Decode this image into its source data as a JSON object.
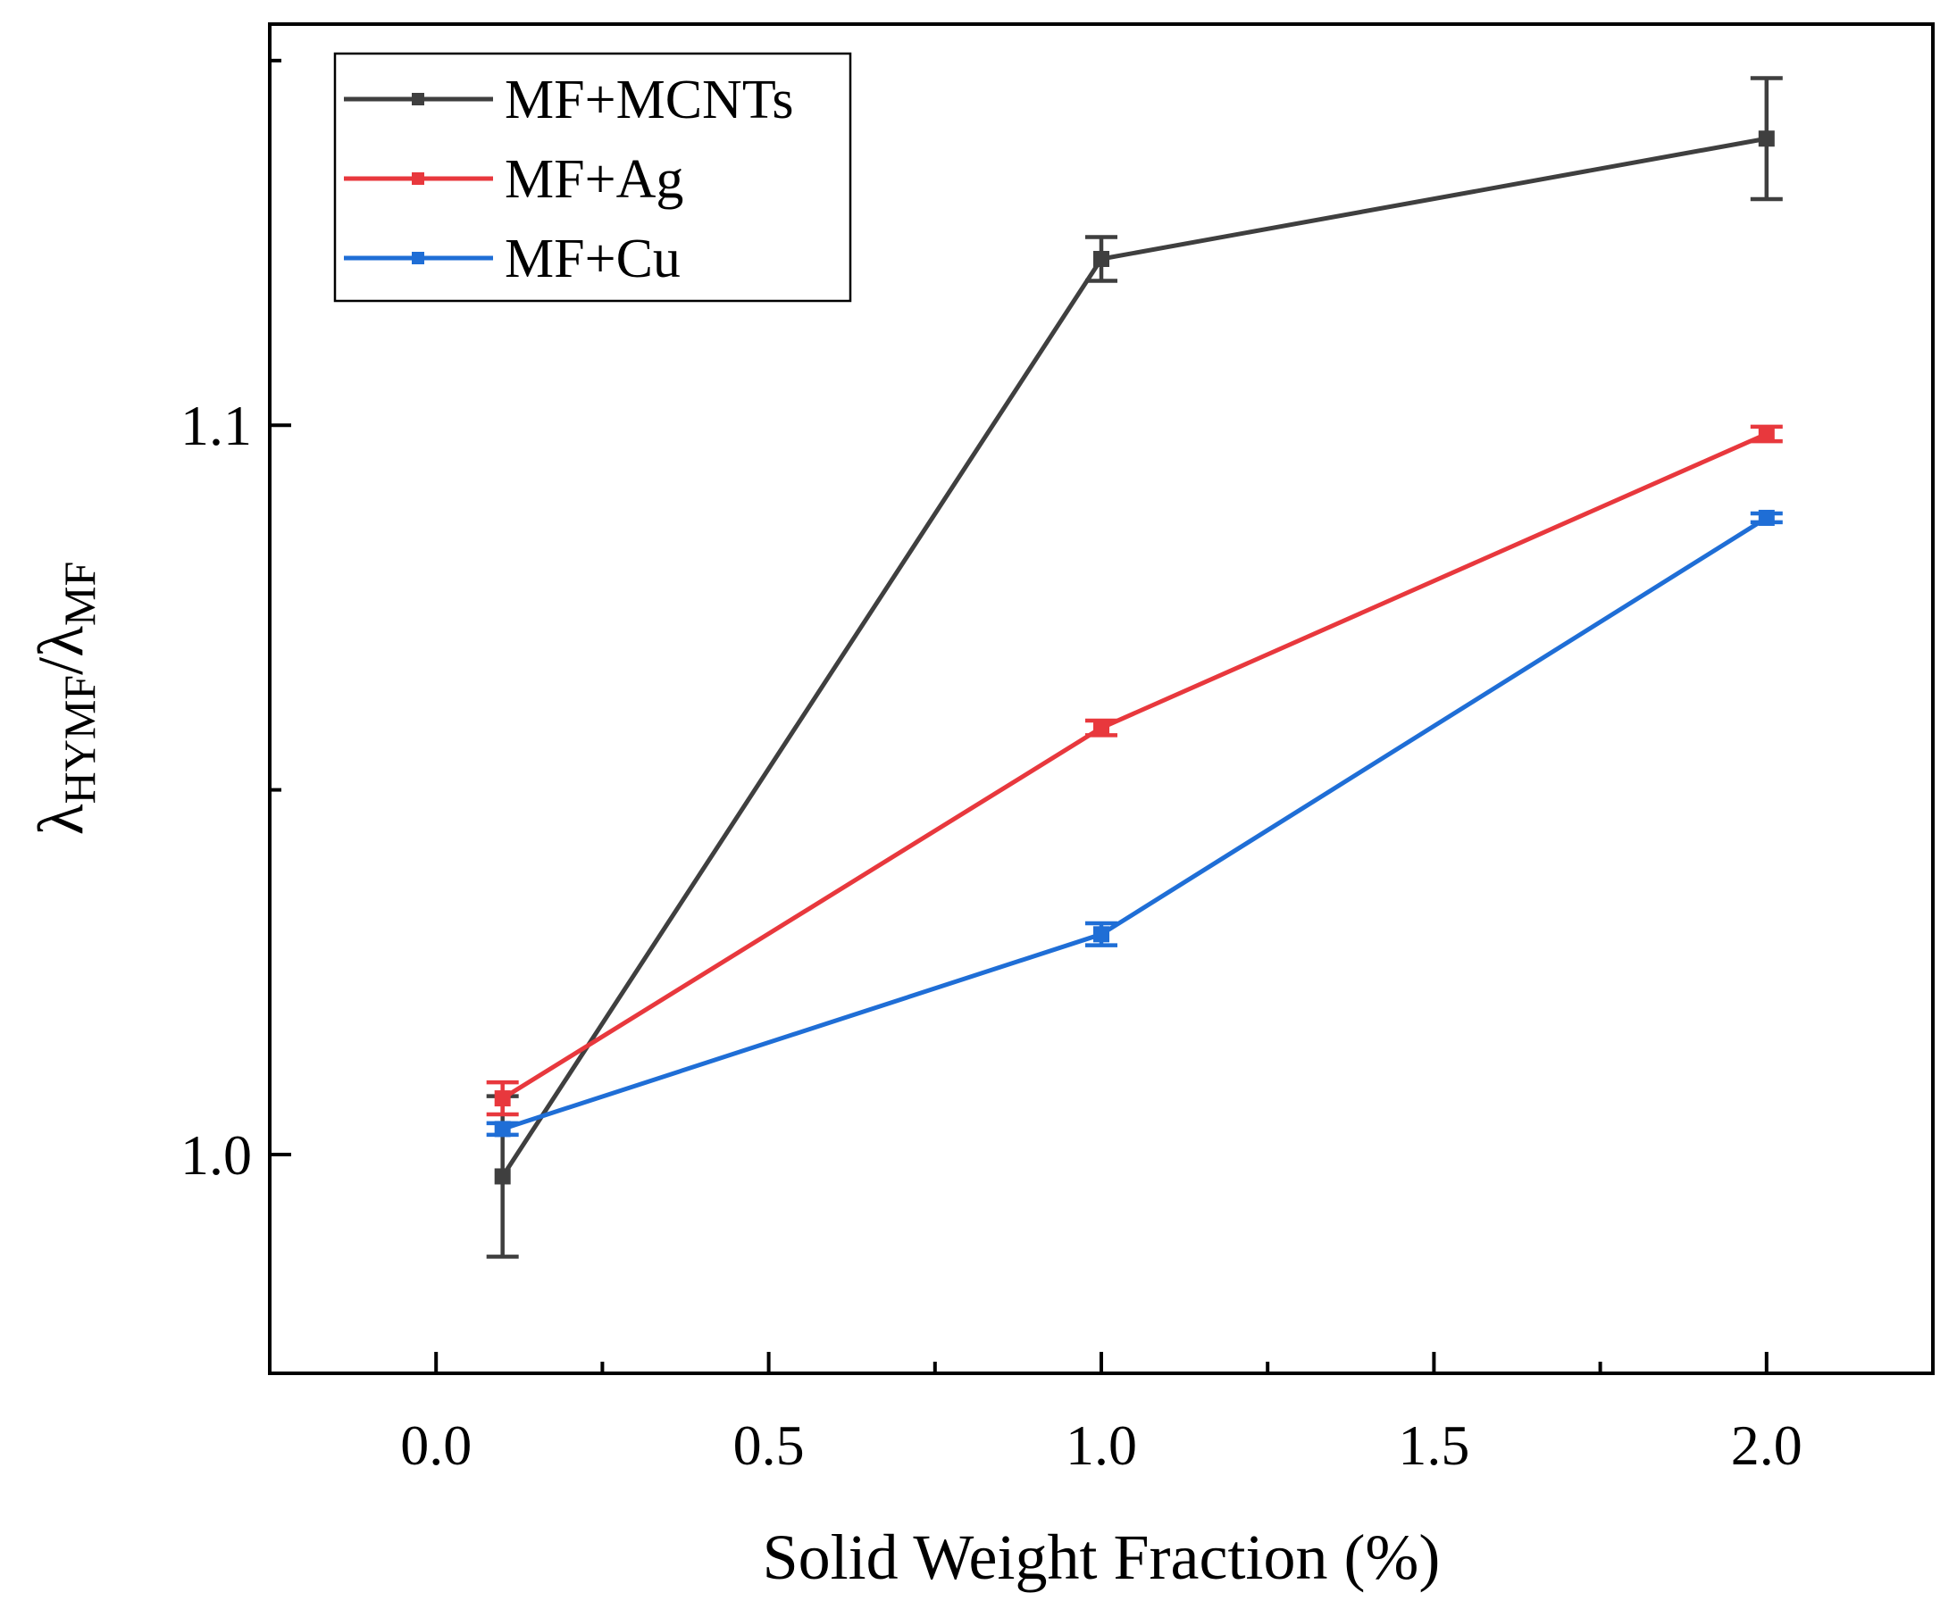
{
  "chart_data": {
    "type": "line",
    "xlabel": "Solid Weight Fraction (%)",
    "ylabel": {
      "lambda1": "λ",
      "sub1": "HYMF",
      "slash": "/",
      "lambda2": "λ",
      "sub2": "MF"
    },
    "xlim": [
      -0.25,
      2.25
    ],
    "ylim": [
      0.97,
      1.155
    ],
    "x_ticks": [
      "0.0",
      "0.5",
      "1.0",
      "1.5",
      "2.0"
    ],
    "x_tick_values": [
      0.0,
      0.5,
      1.0,
      1.5,
      2.0
    ],
    "x_minor_ticks": [
      0.25,
      0.75,
      1.25,
      1.75
    ],
    "y_ticks": [
      "1.0",
      "1.1"
    ],
    "y_tick_values": [
      1.0,
      1.1
    ],
    "y_minor_ticks": [
      1.05,
      1.15
    ],
    "grid": false,
    "legend_position": "top-left",
    "series": [
      {
        "name": "MF+MCNTs",
        "color": "#3f3f3f",
        "x": [
          0.1,
          1.0,
          2.0
        ],
        "y": [
          0.997,
          1.1228,
          1.1393
        ],
        "err": [
          0.011,
          0.003,
          0.0083
        ]
      },
      {
        "name": "MF+Ag",
        "color": "#e8383d",
        "x": [
          0.1,
          1.0,
          2.0
        ],
        "y": [
          1.0077,
          1.0585,
          1.0988
        ],
        "err": [
          0.0022,
          0.001,
          0.001
        ]
      },
      {
        "name": "MF+Cu",
        "color": "#1f6ed6",
        "x": [
          0.1,
          1.0,
          2.0
        ],
        "y": [
          1.0035,
          1.0302,
          1.0873
        ],
        "err": [
          0.0008,
          0.0015,
          0.0006
        ]
      }
    ]
  }
}
